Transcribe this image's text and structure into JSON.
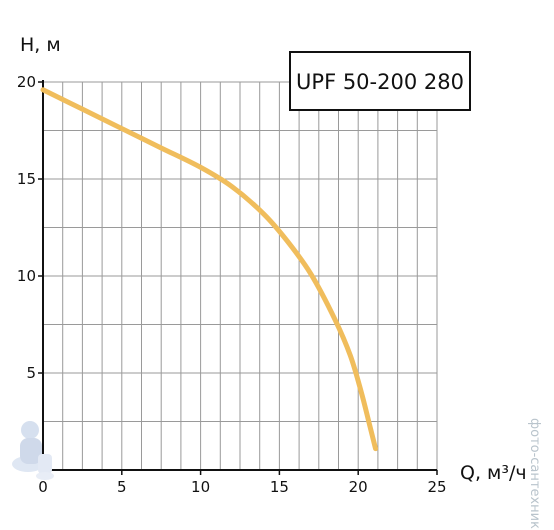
{
  "chart_data": {
    "type": "line",
    "title": "UPF 50-200 280",
    "xlabel": "Q, м³/ч",
    "ylabel": "H, м",
    "xlim": [
      0,
      25
    ],
    "ylim": [
      0,
      20
    ],
    "x_ticks": [
      "0",
      "5",
      "10",
      "15",
      "20",
      "25"
    ],
    "y_ticks": [
      "5",
      "10",
      "15",
      "20"
    ],
    "grid": true,
    "series": [
      {
        "color": "#f0bd5c",
        "x": [
          0,
          2.5,
          5,
          7.5,
          10,
          12,
          14,
          15.5,
          17,
          18.5,
          19.5,
          20.2,
          20.7,
          21.1
        ],
        "y": [
          19.6,
          18.6,
          17.6,
          16.6,
          15.6,
          14.6,
          13.2,
          11.8,
          10.1,
          7.8,
          5.9,
          4.0,
          2.4,
          1.1
        ]
      }
    ]
  },
  "watermark": "фото-сантехник"
}
